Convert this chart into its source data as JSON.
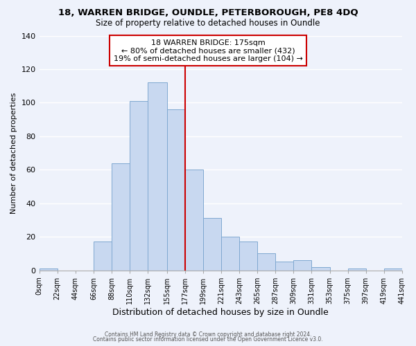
{
  "title1": "18, WARREN BRIDGE, OUNDLE, PETERBOROUGH, PE8 4DQ",
  "title2": "Size of property relative to detached houses in Oundle",
  "xlabel": "Distribution of detached houses by size in Oundle",
  "ylabel": "Number of detached properties",
  "bar_edges": [
    0,
    22,
    44,
    66,
    88,
    110,
    132,
    155,
    177,
    199,
    221,
    243,
    265,
    287,
    309,
    331,
    353,
    375,
    397,
    419,
    441
  ],
  "bar_heights": [
    1,
    0,
    0,
    17,
    64,
    101,
    112,
    96,
    60,
    31,
    20,
    17,
    10,
    5,
    6,
    2,
    0,
    1,
    0,
    1
  ],
  "bar_color": "#c8d8f0",
  "bar_edgecolor": "#7fa8d0",
  "vline_x": 177,
  "vline_color": "#cc0000",
  "ylim": [
    0,
    140
  ],
  "xlim": [
    0,
    441
  ],
  "xtick_labels": [
    "0sqm",
    "22sqm",
    "44sqm",
    "66sqm",
    "88sqm",
    "110sqm",
    "132sqm",
    "155sqm",
    "177sqm",
    "199sqm",
    "221sqm",
    "243sqm",
    "265sqm",
    "287sqm",
    "309sqm",
    "331sqm",
    "353sqm",
    "375sqm",
    "397sqm",
    "419sqm",
    "441sqm"
  ],
  "xtick_positions": [
    0,
    22,
    44,
    66,
    88,
    110,
    132,
    155,
    177,
    199,
    221,
    243,
    265,
    287,
    309,
    331,
    353,
    375,
    397,
    419,
    441
  ],
  "annotation_title": "18 WARREN BRIDGE: 175sqm",
  "annotation_line1": "← 80% of detached houses are smaller (432)",
  "annotation_line2": "19% of semi-detached houses are larger (104) →",
  "annotation_box_color": "#ffffff",
  "annotation_box_edgecolor": "#cc0000",
  "footnote1": "Contains HM Land Registry data © Crown copyright and database right 2024.",
  "footnote2": "Contains public sector information licensed under the Open Government Licence v3.0.",
  "background_color": "#eef2fb"
}
